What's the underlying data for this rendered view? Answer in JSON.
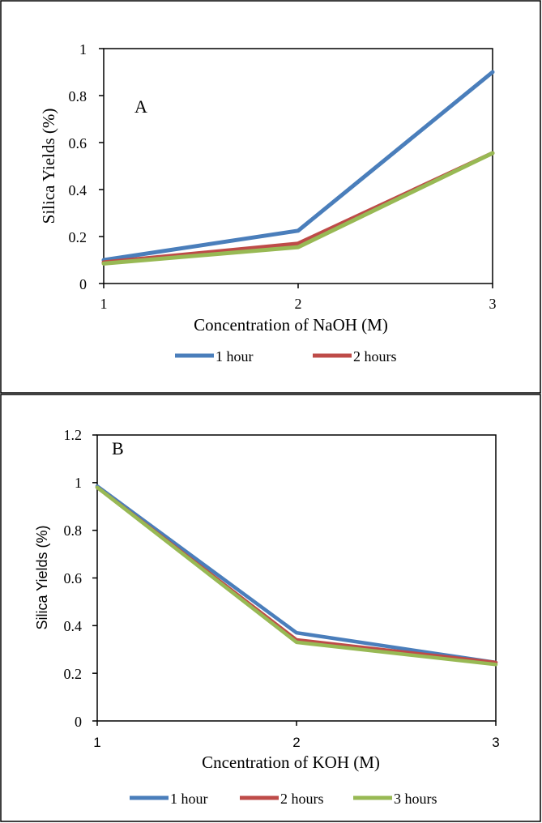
{
  "chart_data": [
    {
      "type": "line",
      "panel_label": "A",
      "title": "",
      "xlabel": "Concentration of NaOH (M)",
      "ylabel": "Silica Yields (%)",
      "x": [
        1,
        2,
        3
      ],
      "xlim": [
        1,
        3
      ],
      "ylim": [
        0,
        1
      ],
      "x_ticks": [
        "1",
        "2",
        "3"
      ],
      "y_ticks": [
        "0",
        "0.2",
        "0.4",
        "0.6",
        "0.8",
        "1"
      ],
      "grid": false,
      "legend_position": "bottom",
      "legend": [
        "1 hour",
        "2 hours"
      ],
      "series": [
        {
          "name": "1 hour",
          "values": [
            0.1,
            0.225,
            0.9
          ],
          "color": "#4a7ebb"
        },
        {
          "name": "2 hours",
          "values": [
            0.09,
            0.17,
            0.555
          ],
          "color": "#be4b48"
        },
        {
          "values": [
            0.085,
            0.155,
            0.555
          ],
          "color": "#98b954"
        }
      ]
    },
    {
      "type": "line",
      "panel_label": "B",
      "title": "",
      "xlabel": "Cncentration of KOH (M)",
      "ylabel": "Silica Yields (%)",
      "x": [
        1,
        2,
        3
      ],
      "xlim": [
        1,
        3
      ],
      "ylim": [
        0,
        1.2
      ],
      "x_ticks": [
        "1",
        "2",
        "3"
      ],
      "y_ticks": [
        "0",
        "0.2",
        "0.4",
        "0.6",
        "0.8",
        "1",
        "1.2"
      ],
      "grid": false,
      "legend_position": "bottom",
      "legend": [
        "1 hour",
        "2 hours",
        "3 hours"
      ],
      "series": [
        {
          "name": "1 hour",
          "values": [
            0.985,
            0.37,
            0.245
          ],
          "color": "#4a7ebb"
        },
        {
          "name": "2 hours",
          "values": [
            0.98,
            0.34,
            0.245
          ],
          "color": "#be4b48"
        },
        {
          "name": "3 hours",
          "values": [
            0.98,
            0.33,
            0.237
          ],
          "color": "#98b954"
        }
      ]
    }
  ]
}
